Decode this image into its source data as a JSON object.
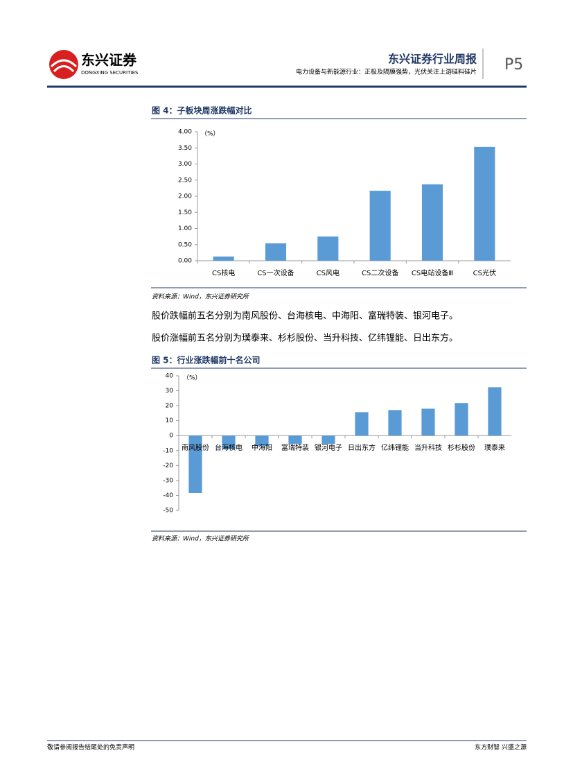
{
  "header": {
    "logo_text": "东兴证券",
    "logo_subtext": "DONGXING SECURITIES",
    "title": "东兴证券行业周报",
    "subtitle": "电力设备与新能源行业：正极及隔膜强势，光伏关注上游硅料硅片",
    "page": "P5"
  },
  "chart_data": [
    {
      "type": "bar",
      "title": "图 4：子板块周涨跌幅对比",
      "unit_label": "（%）",
      "categories": [
        "CS核电",
        "CS一次设备",
        "CS风电",
        "CS二次设备",
        "CS电站设备Ⅲ",
        "CS光伏"
      ],
      "values": [
        0.13,
        0.54,
        0.75,
        2.17,
        2.37,
        3.53
      ],
      "color": "#5b9bd5",
      "ylim": [
        0,
        4
      ],
      "yticks": [
        {
          "value": 0,
          "label": "0.00"
        },
        {
          "value": 0.5,
          "label": "0.50"
        },
        {
          "value": 1,
          "label": "1.00"
        },
        {
          "value": 1.5,
          "label": "1.50"
        },
        {
          "value": 2,
          "label": "2.00"
        },
        {
          "value": 2.5,
          "label": "2.50"
        },
        {
          "value": 3,
          "label": "3.00"
        },
        {
          "value": 3.5,
          "label": "3.50"
        },
        {
          "value": 4,
          "label": "4.00"
        }
      ],
      "source": "资料来源：Wind，东兴证券研究所"
    },
    {
      "type": "bar",
      "title": "图 5：行业涨跌幅前十名公司",
      "unit_label": "（%）",
      "categories": [
        "南风股份",
        "台海核电",
        "中海阳",
        "富瑞特装",
        "银河电子",
        "日出东方",
        "亿纬锂能",
        "当升科技",
        "杉杉股份",
        "璞泰来"
      ],
      "values": [
        -38.4,
        -9,
        -7,
        -5.5,
        -5.5,
        15.7,
        17.1,
        18,
        21.8,
        32.4
      ],
      "color": "#5b9bd5",
      "ylim": [
        -50,
        40
      ],
      "yticks": [
        -50,
        -40,
        -30,
        -20,
        -10,
        0,
        10,
        20,
        30,
        40
      ],
      "source": "资料来源：Wind，东兴证券研究所"
    }
  ],
  "paragraphs": [
    "股价跌幅前五名分别为南风股份、台海核电、中海阳、富瑞特装、银河电子。",
    "股价涨幅前五名分别为璞泰来、杉杉股份、当升科技、亿纬锂能、日出东方。"
  ],
  "footer": {
    "left": "敬请参阅报告结尾处的免责声明",
    "right": "东方财智 兴盛之源"
  }
}
